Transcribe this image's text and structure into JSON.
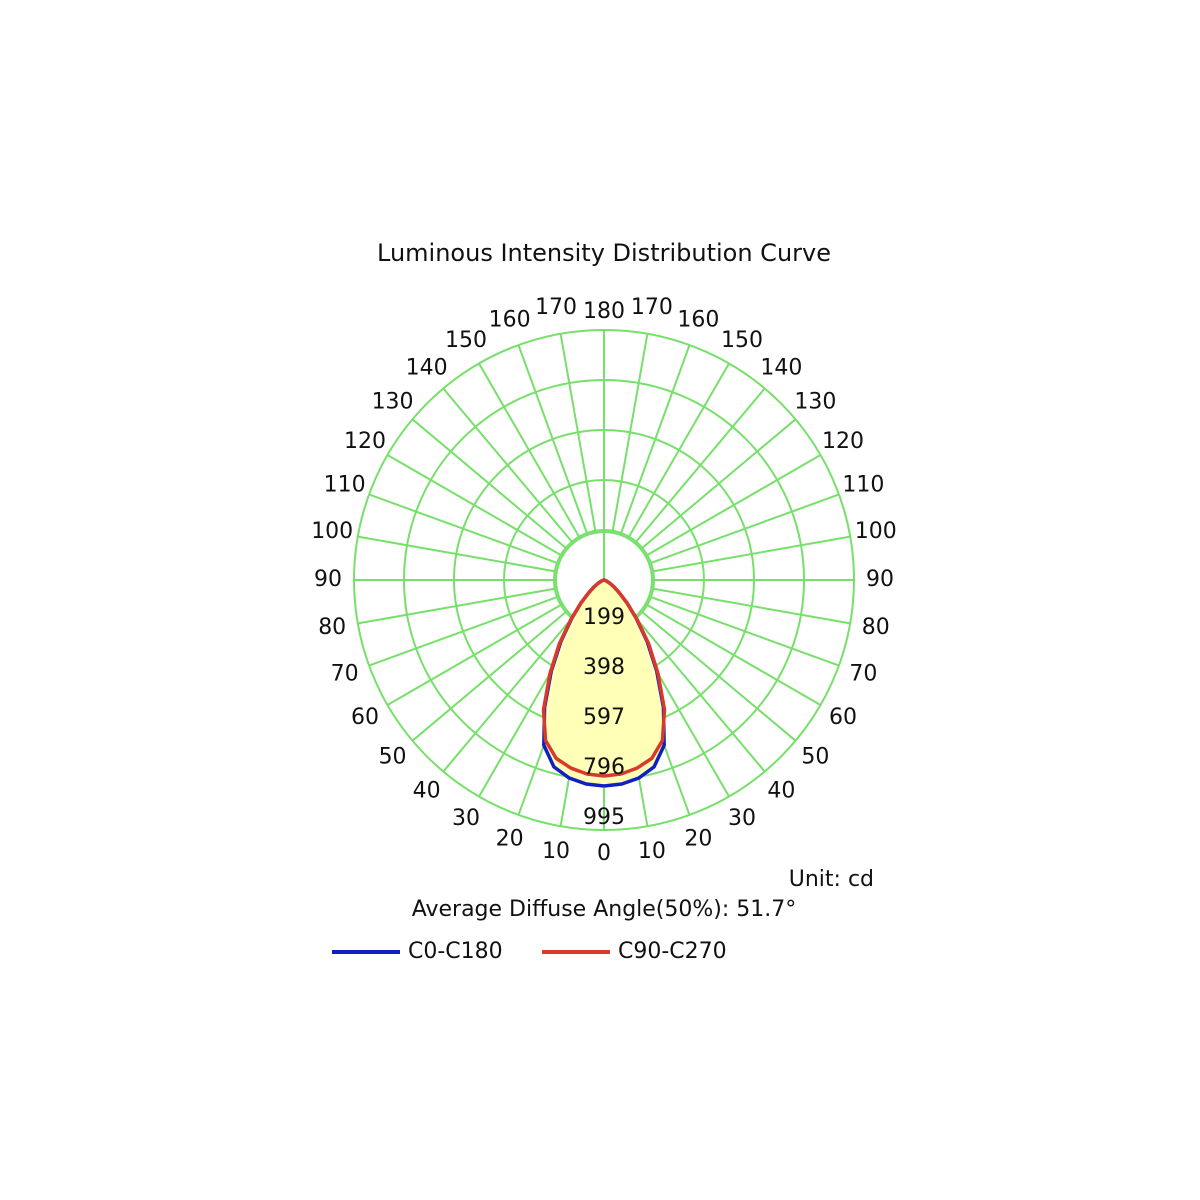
{
  "chart_data": {
    "type": "polar",
    "title": "Luminous Intensity Distribution Curve",
    "x": [
      0,
      5,
      10,
      15,
      20,
      25,
      30,
      35,
      40,
      45,
      50,
      55,
      60,
      65,
      70,
      75,
      80,
      85,
      90
    ],
    "series": [
      {
        "name": "C0-C180",
        "color": "#1020c0",
        "values": [
          820,
          815,
          800,
          770,
          700,
          560,
          420,
          300,
          200,
          130,
          80,
          50,
          30,
          15,
          8,
          4,
          2,
          1,
          0
        ]
      },
      {
        "name": "C90-C270",
        "color": "#d83a2a",
        "values": [
          780,
          775,
          760,
          735,
          680,
          570,
          430,
          310,
          205,
          130,
          80,
          50,
          30,
          15,
          8,
          4,
          2,
          1,
          0
        ]
      }
    ],
    "ylim": [
      0,
      995
    ],
    "yticks": [
      199,
      398,
      597,
      796,
      995
    ],
    "angle_ticks": [
      0,
      10,
      20,
      30,
      40,
      50,
      60,
      70,
      80,
      90,
      100,
      110,
      120,
      130,
      140,
      150,
      160,
      170,
      180
    ],
    "grid": true,
    "grid_color": "#77e06a",
    "fill_color": "#ffffb8",
    "unit": "Unit: cd",
    "annotation": "Average Diffuse Angle(50%): 51.7°"
  }
}
